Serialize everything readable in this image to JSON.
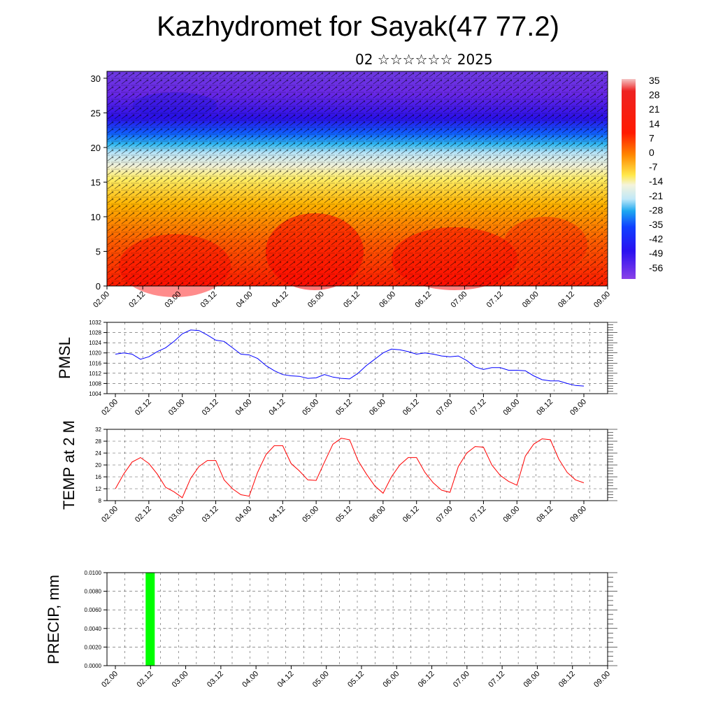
{
  "header": {
    "title": "Kazhydromet for Sayak(47 77.2)",
    "subtitle": "02 ☆☆☆☆☆☆ 2025"
  },
  "colors": {
    "pressure_line": "#0000ff",
    "temperature_line": "#ff0000",
    "precip_bar": "#00ff00",
    "grid": "#555555"
  },
  "chart_data": [
    {
      "type": "heatmap",
      "name": "cross-section",
      "title": "",
      "xlabel": "",
      "ylabel": "",
      "x_tick_labels": [
        "02.00",
        "02.12",
        "03.00",
        "03.12",
        "04.00",
        "04.12",
        "05.00",
        "05.12",
        "06.00",
        "06.12",
        "07.00",
        "07.12",
        "08.00",
        "08.12",
        "09.00"
      ],
      "y_ticks": [
        0,
        5,
        10,
        15,
        20,
        25,
        30
      ],
      "ylim": [
        0,
        31
      ],
      "colorbar_labels": [
        "35",
        "28",
        "21",
        "14",
        "7",
        "0",
        "-7",
        "-14",
        "-21",
        "-28",
        "-35",
        "-42",
        "-49",
        "-56"
      ],
      "overlay": "wind vectors"
    },
    {
      "type": "line",
      "name": "pressure",
      "ylabel": "PMSL",
      "x_tick_labels": [
        "02.00",
        "02.12",
        "03.00",
        "03.12",
        "04.00",
        "04.12",
        "05.00",
        "05.12",
        "06.00",
        "06.12",
        "07.00",
        "07.12",
        "08.00",
        "08.12",
        "09.00"
      ],
      "y_ticks": [
        "1004",
        "1008",
        "1012",
        "1016",
        "1020",
        "1024",
        "1028",
        "1032"
      ],
      "ylim": [
        1004,
        1032
      ],
      "values": [
        1019.5,
        1020,
        1019.5,
        1017.5,
        1018.5,
        1020.5,
        1022,
        1024.5,
        1027.5,
        1029,
        1028.8,
        1027,
        1025,
        1024.5,
        1022,
        1019.5,
        1019.2,
        1017.8,
        1015,
        1013,
        1011.5,
        1011,
        1010.8,
        1010,
        1010.2,
        1011.5,
        1010.5,
        1010,
        1009.8,
        1012,
        1015,
        1017.5,
        1020,
        1021.5,
        1021.2,
        1020.5,
        1019.5,
        1020,
        1019.5,
        1018.8,
        1018.5,
        1018.8,
        1017,
        1014.5,
        1013.5,
        1014.2,
        1014.2,
        1013.2,
        1013.2,
        1013,
        1011,
        1009.5,
        1009,
        1009,
        1008,
        1007.2,
        1007
      ]
    },
    {
      "type": "line",
      "name": "temperature",
      "ylabel": "TEMP at 2 M",
      "x_tick_labels": [
        "02.00",
        "02.12",
        "03.00",
        "03.12",
        "04.00",
        "04.12",
        "05.00",
        "05.12",
        "06.00",
        "06.12",
        "07.00",
        "07.12",
        "08.00",
        "08.12",
        "09.00"
      ],
      "y_ticks": [
        "8",
        "12",
        "16",
        "20",
        "24",
        "28",
        "32"
      ],
      "ylim": [
        8,
        32
      ],
      "values": [
        12,
        17,
        21,
        22.5,
        20.5,
        17,
        12.5,
        11,
        9,
        15.5,
        19.5,
        21.5,
        21.5,
        15,
        12,
        10,
        9.5,
        17.5,
        23.5,
        26.5,
        26.5,
        20.5,
        18,
        15,
        14.8,
        21,
        27,
        29,
        28.5,
        21.5,
        17,
        13,
        10.5,
        16,
        20,
        22.5,
        22.5,
        17.5,
        14,
        11.5,
        10.8,
        19.5,
        24,
        26.2,
        26,
        20,
        16.5,
        14.5,
        13.2,
        23,
        27,
        28.8,
        28.5,
        22,
        17.5,
        15,
        14
      ]
    },
    {
      "type": "bar",
      "name": "precipitation",
      "ylabel": "PRECIP, mm",
      "x_tick_labels": [
        "02.00",
        "02.12",
        "03.00",
        "03.12",
        "04.00",
        "04.12",
        "05.00",
        "05.12",
        "06.00",
        "06.12",
        "07.00",
        "07.12",
        "08.00",
        "08.12",
        "09.00"
      ],
      "y_ticks": [
        "0.0000",
        "0.0020",
        "0.0040",
        "0.0060",
        "0.0080",
        "0.0100"
      ],
      "ylim": [
        0,
        0.01
      ],
      "bars": [
        {
          "x": "02.12",
          "value": 0.01
        }
      ]
    }
  ]
}
